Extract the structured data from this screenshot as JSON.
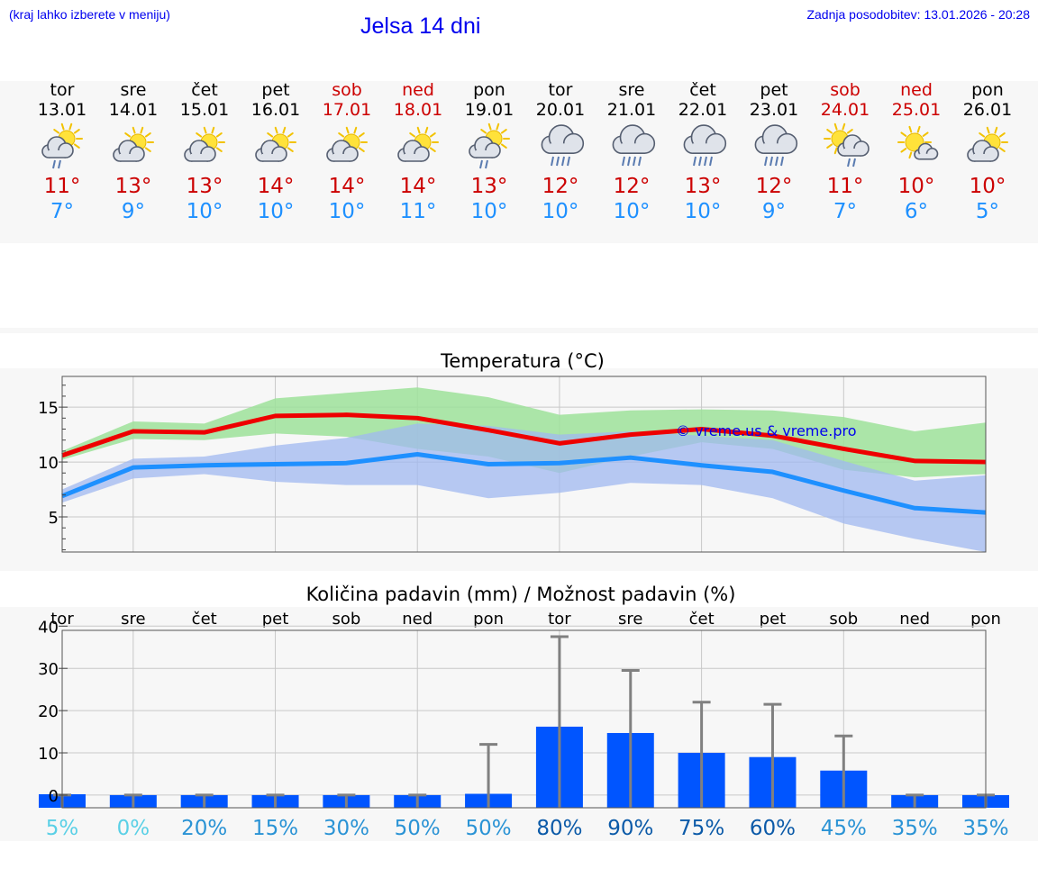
{
  "header": {
    "menu_hint": "(kraj lahko izberete v meniju)",
    "title": "Jelsa 14 dni",
    "last_update": "Zadnja posodobitev: 13.01.2026 - 20:28"
  },
  "days": [
    {
      "day": "tor",
      "date": "13.01",
      "weekend": false,
      "icon": "sun-cloud-drizzle-icon",
      "max": "11°",
      "min": "7°"
    },
    {
      "day": "sre",
      "date": "14.01",
      "weekend": false,
      "icon": "sun-cloud-icon",
      "max": "13°",
      "min": "9°"
    },
    {
      "day": "čet",
      "date": "15.01",
      "weekend": false,
      "icon": "sun-cloud-icon",
      "max": "13°",
      "min": "10°"
    },
    {
      "day": "pet",
      "date": "16.01",
      "weekend": false,
      "icon": "sun-cloud-icon",
      "max": "14°",
      "min": "10°"
    },
    {
      "day": "sob",
      "date": "17.01",
      "weekend": true,
      "icon": "sun-cloud-icon",
      "max": "14°",
      "min": "10°"
    },
    {
      "day": "ned",
      "date": "18.01",
      "weekend": true,
      "icon": "sun-cloud-icon",
      "max": "14°",
      "min": "11°"
    },
    {
      "day": "pon",
      "date": "19.01",
      "weekend": false,
      "icon": "sun-cloud-drizzle-icon",
      "max": "13°",
      "min": "10°"
    },
    {
      "day": "tor",
      "date": "20.01",
      "weekend": false,
      "icon": "cloud-rain-icon",
      "max": "12°",
      "min": "10°"
    },
    {
      "day": "sre",
      "date": "21.01",
      "weekend": false,
      "icon": "cloud-rain-icon",
      "max": "12°",
      "min": "10°"
    },
    {
      "day": "čet",
      "date": "22.01",
      "weekend": false,
      "icon": "cloud-rain-icon",
      "max": "13°",
      "min": "10°"
    },
    {
      "day": "pet",
      "date": "23.01",
      "weekend": false,
      "icon": "cloud-rain-icon",
      "max": "12°",
      "min": "9°"
    },
    {
      "day": "sob",
      "date": "24.01",
      "weekend": true,
      "icon": "sun-cloud-rain-icon",
      "max": "11°",
      "min": "7°"
    },
    {
      "day": "ned",
      "date": "25.01",
      "weekend": true,
      "icon": "sun-small-cloud-icon",
      "max": "10°",
      "min": "6°"
    },
    {
      "day": "pon",
      "date": "26.01",
      "weekend": false,
      "icon": "sun-cloud-icon",
      "max": "10°",
      "min": "5°"
    }
  ],
  "colors": {
    "max_line": "#ee0000",
    "min_line": "#1e90ff",
    "max_band": "#9ee29a",
    "min_band": "#a0b8f0",
    "overlap_band": "#7fc4a8",
    "bar": "#0055ff",
    "error": "#808080",
    "weekend": "#cc0000",
    "link": "#0000ee"
  },
  "chart_data": [
    {
      "type": "line",
      "title": "Temperatura (°C)",
      "watermark": "© vreme.us & vreme.pro",
      "ylim": [
        1.8,
        17.8
      ],
      "yticks": [
        5,
        10,
        15
      ],
      "x": [
        0,
        1,
        2,
        3,
        4,
        5,
        6,
        7,
        8,
        9,
        10,
        11,
        12,
        13
      ],
      "series": [
        {
          "name": "max",
          "values": [
            10.6,
            12.8,
            12.7,
            14.2,
            14.3,
            14.0,
            12.9,
            11.7,
            12.5,
            13.0,
            12.4,
            11.2,
            10.1,
            10.0
          ]
        },
        {
          "name": "min",
          "values": [
            6.9,
            9.5,
            9.7,
            9.8,
            9.9,
            10.7,
            9.8,
            9.9,
            10.4,
            9.7,
            9.1,
            7.4,
            5.8,
            5.4
          ]
        },
        {
          "name": "max_range",
          "low": [
            10.2,
            12.1,
            12.0,
            12.6,
            12.3,
            11.2,
            10.5,
            9.0,
            10.5,
            11.8,
            11.2,
            9.3,
            8.6,
            8.9
          ],
          "high": [
            11.0,
            13.7,
            13.5,
            15.8,
            16.3,
            16.8,
            15.9,
            14.3,
            14.7,
            14.8,
            14.7,
            14.1,
            12.8,
            13.6
          ]
        },
        {
          "name": "min_range",
          "low": [
            6.3,
            8.5,
            8.9,
            8.2,
            7.9,
            7.9,
            6.7,
            7.2,
            8.1,
            7.9,
            6.7,
            4.4,
            3.0,
            1.8
          ],
          "high": [
            7.5,
            10.3,
            10.5,
            11.5,
            12.2,
            13.5,
            13.3,
            12.5,
            12.8,
            12.4,
            12.0,
            10.1,
            8.3,
            8.8
          ]
        }
      ]
    },
    {
      "type": "bar",
      "title": "Količina padavin (mm) / Možnost padavin (%)",
      "categories": [
        "tor",
        "sre",
        "čet",
        "pet",
        "sob",
        "ned",
        "pon",
        "tor",
        "sre",
        "čet",
        "pet",
        "sob",
        "ned",
        "pon"
      ],
      "ylim": [
        -3,
        39
      ],
      "yticks": [
        0,
        10,
        20,
        30,
        40
      ],
      "values": [
        0.2,
        0,
        0,
        0,
        0,
        0,
        0.3,
        16.2,
        14.7,
        10.0,
        9.0,
        5.8,
        0,
        0
      ],
      "error_high": [
        0,
        0,
        0,
        0,
        0,
        0,
        12.0,
        37.5,
        29.5,
        22.0,
        21.5,
        14.0,
        0,
        0
      ],
      "probability": [
        "5%",
        "0%",
        "20%",
        "15%",
        "30%",
        "50%",
        "50%",
        "80%",
        "90%",
        "75%",
        "60%",
        "45%",
        "35%",
        "35%"
      ],
      "probability_values": [
        5,
        0,
        20,
        15,
        30,
        50,
        50,
        80,
        90,
        75,
        60,
        45,
        35,
        35
      ]
    }
  ]
}
